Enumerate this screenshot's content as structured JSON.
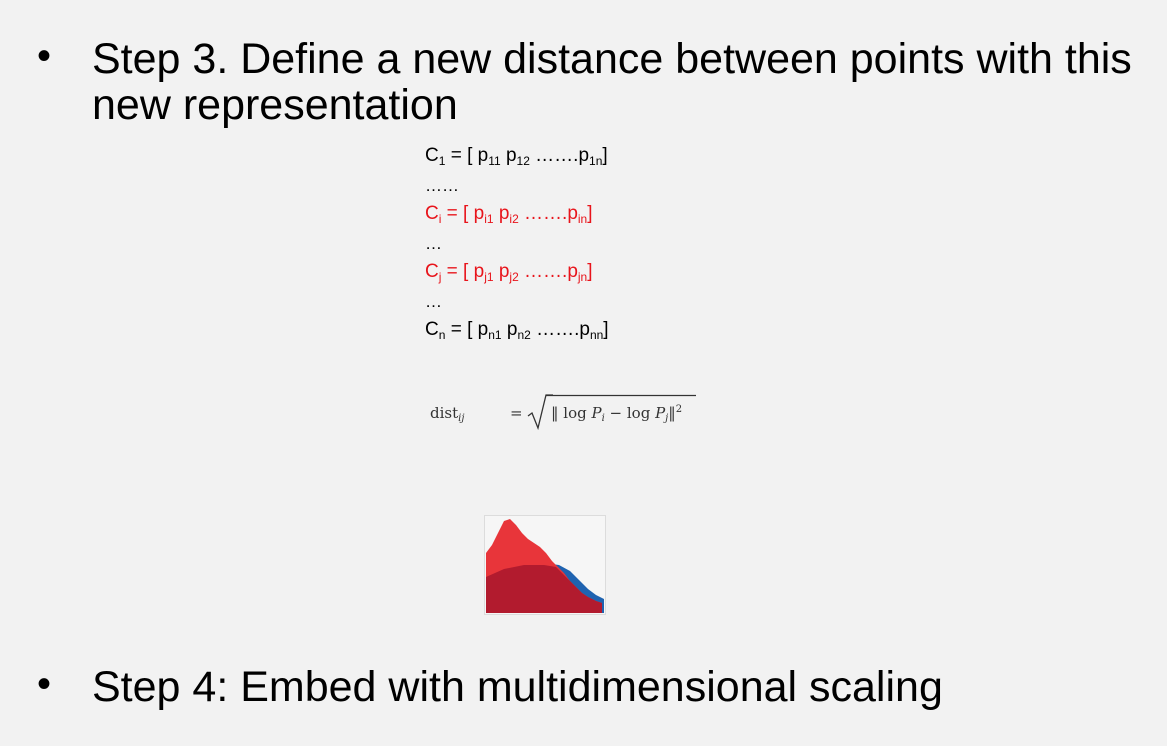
{
  "slide": {
    "bullet_char": "•",
    "step3": {
      "line1": "Step 3. Define a new distance between points with this",
      "line2": "new representation"
    },
    "step4": {
      "text": "Step 4: Embed with multidimensional scaling"
    }
  },
  "matrix": {
    "rows": [
      {
        "name": "C",
        "name_sub": "1",
        "eq": " = [ ",
        "a": "p",
        "a_sub": "11",
        "b": "p",
        "b_sub": "12",
        "dots": " …….",
        "c": "p",
        "c_sub": "1n",
        "close": "]",
        "highlight": false
      },
      {
        "ellipsis": "……"
      },
      {
        "name": "C",
        "name_sub": "i",
        "eq": " = [ ",
        "a": "p",
        "a_sub": "i1",
        "b": "p",
        "b_sub": "i2",
        "dots": " …….",
        "c": "p",
        "c_sub": "in",
        "close": "]",
        "highlight": true
      },
      {
        "ellipsis": "…"
      },
      {
        "name": "C",
        "name_sub": "j",
        "eq": " = [ ",
        "a": "p",
        "a_sub": "j1",
        "b": "p",
        "b_sub": "j2",
        "dots": " …….",
        "c": "p",
        "c_sub": "jn",
        "close": "]",
        "highlight": true
      },
      {
        "ellipsis": "…"
      },
      {
        "name": "C",
        "name_sub": "n",
        "eq": " = [ ",
        "a": "p",
        "a_sub": "n1",
        "b": "p",
        "b_sub": "n2",
        "dots": " …….",
        "c": "p",
        "c_sub": "nn",
        "close": "]",
        "highlight": false
      }
    ]
  },
  "formula": {
    "lhs": "dist",
    "lhs_sub": "ij",
    "eq": "=",
    "radicand_open": "‖ log ",
    "p_i": "P",
    "p_i_sub": "i",
    "minus": " − log ",
    "p_j": "P",
    "p_j_sub": "j",
    "radicand_close": "‖",
    "exponent": "2"
  },
  "colors": {
    "background": "#f2f2f2",
    "highlight_red": "#e8141b",
    "dist_red": "#e8353a",
    "dist_dark_red": "#b21b2e",
    "dist_blue": "#1f63b0"
  }
}
